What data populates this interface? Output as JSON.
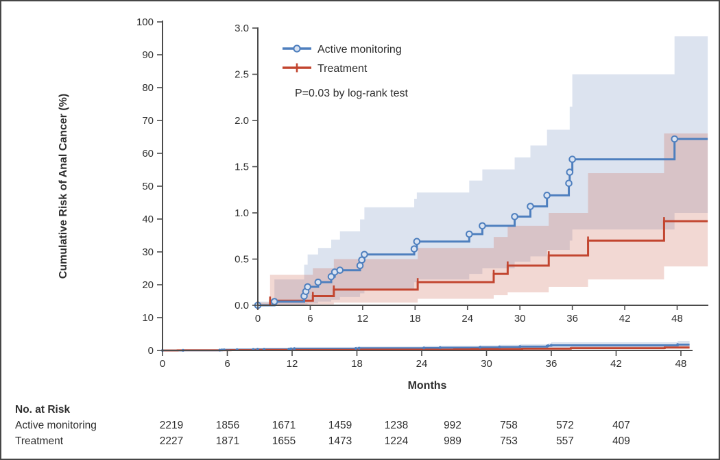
{
  "figure": {
    "background": "#ffffff",
    "border_color": "#464646",
    "axis_color": "#4a4a4a",
    "text_color": "#2e2e2e"
  },
  "chart_data": {
    "type": "line",
    "subtype": "cumulative-incidence-step",
    "title": "",
    "xlabel": "Months",
    "ylabel": "Cumulative Risk of Anal Cancer (%)",
    "main_axis": {
      "xticks": [
        0,
        6,
        12,
        18,
        24,
        30,
        36,
        42,
        48
      ],
      "yticks": [
        0,
        10,
        20,
        30,
        40,
        50,
        60,
        70,
        80,
        90,
        100
      ],
      "xlim": [
        0,
        48.8
      ],
      "ylim": [
        0,
        100
      ],
      "grid": false
    },
    "inset_axis": {
      "xticks": [
        0,
        6,
        12,
        18,
        24,
        30,
        36,
        42,
        48
      ],
      "ytick_labels": [
        "0.0",
        "0.5",
        "1.0",
        "1.5",
        "2.0",
        "2.5",
        "3.0"
      ],
      "yticks": [
        0,
        0.5,
        1.0,
        1.5,
        2.0,
        2.5,
        3.0
      ],
      "xlim": [
        0,
        51.5
      ],
      "ylim": [
        0,
        3.0
      ],
      "grid": false
    },
    "legend": {
      "position": "inset-top-left",
      "items": [
        {
          "label": "Active monitoring",
          "color": "#4e7fbe",
          "marker": "circle"
        },
        {
          "label": "Treatment",
          "color": "#c2452f",
          "marker": "plus"
        }
      ],
      "note": "P=0.03 by log-rank test"
    },
    "end_month": 51.5,
    "series": [
      {
        "name": "Active monitoring",
        "color": "#4e7fbe",
        "marker": "circle",
        "marker_fill": "#d9e3f2",
        "band_fill": "rgba(110,140,190,0.24)",
        "steps": [
          [
            0,
            0
          ],
          [
            1.9,
            0.04
          ],
          [
            5.3,
            0.1
          ],
          [
            5.5,
            0.15
          ],
          [
            5.7,
            0.2
          ],
          [
            6.9,
            0.25
          ],
          [
            8.4,
            0.31
          ],
          [
            8.8,
            0.36
          ],
          [
            9.4,
            0.38
          ],
          [
            11.7,
            0.43
          ],
          [
            11.9,
            0.49
          ],
          [
            12.2,
            0.55
          ],
          [
            17.9,
            0.61
          ],
          [
            18.2,
            0.69
          ],
          [
            24.2,
            0.77
          ],
          [
            25.7,
            0.86
          ],
          [
            29.4,
            0.96
          ],
          [
            31.2,
            1.07
          ],
          [
            33.1,
            1.19
          ],
          [
            35.6,
            1.32
          ],
          [
            35.7,
            1.44
          ],
          [
            36.0,
            1.58
          ],
          [
            47.7,
            1.8
          ]
        ],
        "band": [
          [
            0,
            0,
            0.04
          ],
          [
            1.9,
            0,
            0.28
          ],
          [
            5.3,
            0.01,
            0.44
          ],
          [
            5.7,
            0.02,
            0.55
          ],
          [
            6.9,
            0.04,
            0.62
          ],
          [
            8.4,
            0.06,
            0.71
          ],
          [
            9.4,
            0.09,
            0.8
          ],
          [
            11.7,
            0.13,
            0.93
          ],
          [
            12.2,
            0.18,
            1.06
          ],
          [
            17.9,
            0.25,
            1.15
          ],
          [
            18.2,
            0.28,
            1.22
          ],
          [
            24.2,
            0.34,
            1.35
          ],
          [
            25.7,
            0.4,
            1.47
          ],
          [
            29.4,
            0.47,
            1.6
          ],
          [
            31.2,
            0.53,
            1.73
          ],
          [
            33.1,
            0.6,
            1.9
          ],
          [
            35.7,
            0.7,
            2.15
          ],
          [
            36.0,
            0.82,
            2.5
          ],
          [
            47.7,
            1.0,
            2.91
          ]
        ]
      },
      {
        "name": "Treatment",
        "color": "#c2452f",
        "marker": "plus",
        "marker_fill": "#c2452f",
        "band_fill": "rgba(205,105,85,0.26)",
        "steps": [
          [
            0,
            0
          ],
          [
            1.4,
            0.05
          ],
          [
            6.3,
            0.1
          ],
          [
            8.7,
            0.17
          ],
          [
            18.3,
            0.25
          ],
          [
            27.0,
            0.34
          ],
          [
            28.6,
            0.43
          ],
          [
            33.3,
            0.54
          ],
          [
            37.8,
            0.7
          ],
          [
            46.5,
            0.91
          ]
        ],
        "band": [
          [
            0,
            0,
            0.03
          ],
          [
            1.4,
            0,
            0.33
          ],
          [
            6.3,
            0.01,
            0.4
          ],
          [
            8.7,
            0.03,
            0.5
          ],
          [
            18.3,
            0.07,
            0.62
          ],
          [
            27.0,
            0.11,
            0.74
          ],
          [
            28.6,
            0.14,
            0.86
          ],
          [
            33.3,
            0.2,
            1.0
          ],
          [
            37.8,
            0.28,
            1.43
          ],
          [
            46.5,
            0.42,
            1.86
          ]
        ]
      }
    ]
  },
  "risk_table": {
    "title": "No. at Risk",
    "months": [
      0,
      6,
      12,
      18,
      24,
      30,
      36,
      42,
      48
    ],
    "rows": [
      {
        "label": "Active monitoring",
        "values": [
          2219,
          1856,
          1671,
          1459,
          1238,
          992,
          758,
          572,
          407
        ]
      },
      {
        "label": "Treatment",
        "values": [
          2227,
          1871,
          1655,
          1473,
          1224,
          989,
          753,
          557,
          409
        ]
      }
    ]
  }
}
